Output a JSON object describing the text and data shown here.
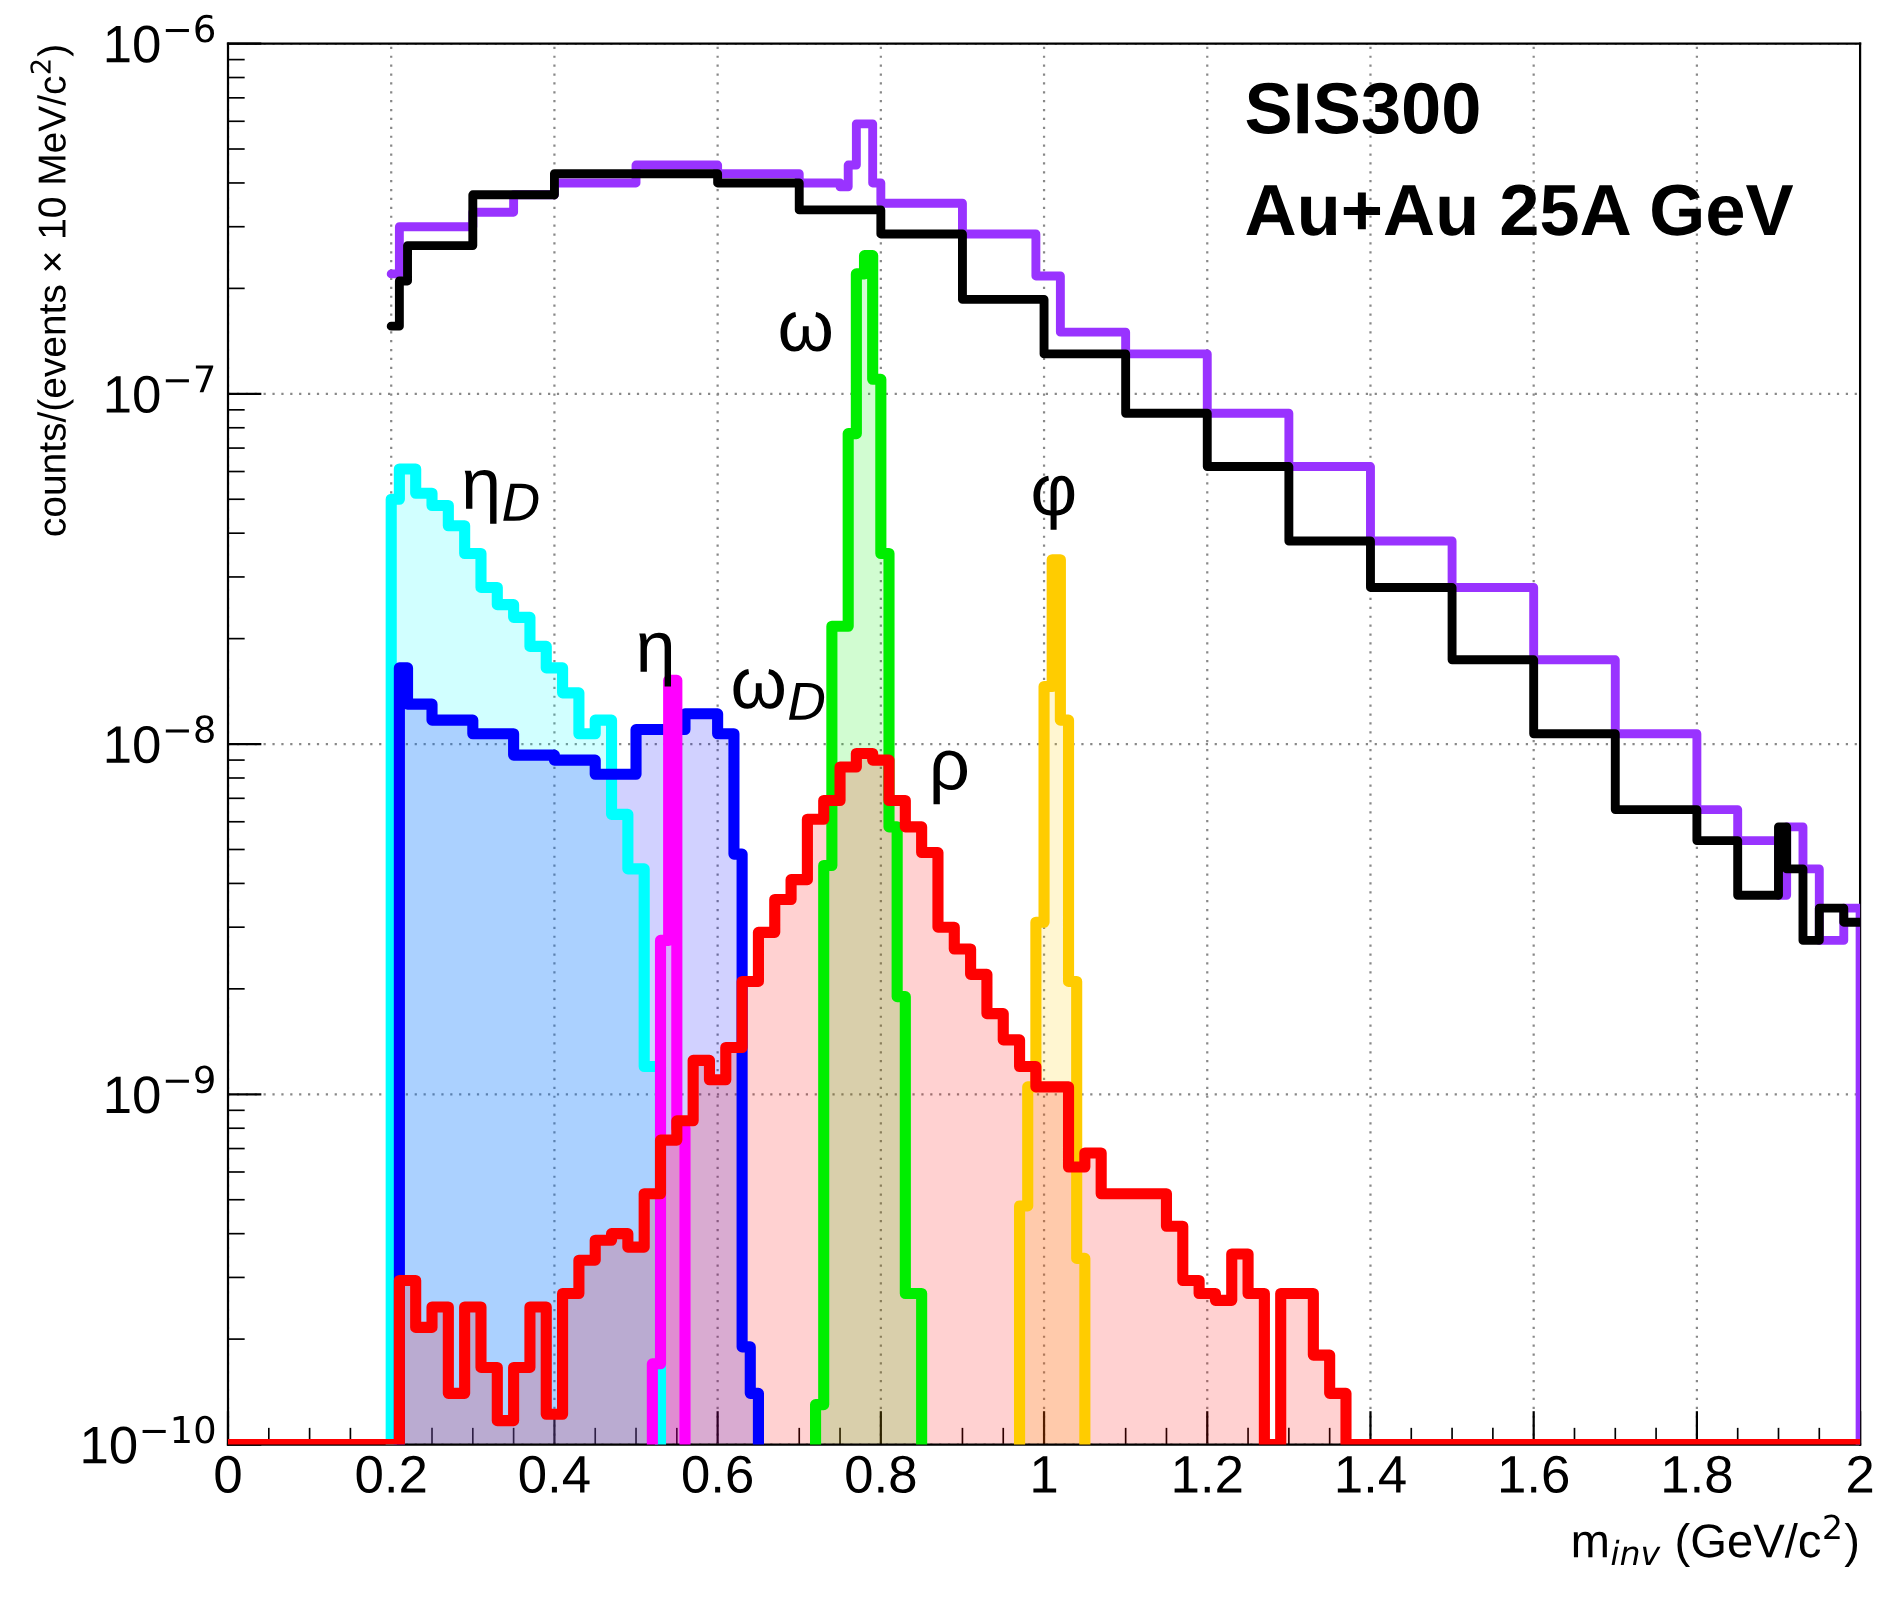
{
  "chart_data": {
    "type": "step",
    "xlabel": "m$_{inv}$ (GeV/c$^{2}$)",
    "ylabel": "counts/(events × 10 MeV/c$^{2}$)",
    "log": "y",
    "grid": true,
    "xlim": [
      0,
      2
    ],
    "xticks": [
      0,
      0.2,
      0.4,
      0.6,
      0.8,
      1,
      1.2,
      1.4,
      1.6,
      1.8,
      2
    ],
    "ylim": [
      1e-10,
      1e-06
    ],
    "yticks": [
      {
        "value": 1e-10,
        "label": "10$^{−10}$"
      },
      {
        "value": 1e-09,
        "label": "10$^{−9}$"
      },
      {
        "value": 1e-08,
        "label": "10$^{−8}$"
      },
      {
        "value": 1e-07,
        "label": "10$^{−7}$"
      },
      {
        "value": 1e-06,
        "label": "10$^{−6}$"
      }
    ],
    "annotations": [
      "SIS300",
      "Au+Au 25A GeV",
      "η$_{D}$",
      "ω",
      "η",
      "ω$_{D}$",
      "ρ",
      "φ"
    ],
    "series": [
      {
        "color": "#9933ff",
        "x": [
          0.2,
          0.21,
          0.3,
          0.35,
          0.4,
          0.5,
          0.6,
          0.7,
          0.75,
          0.76,
          0.77,
          0.79,
          0.8,
          0.9,
          0.99,
          1.02,
          1.1,
          1.2,
          1.3,
          1.4,
          1.5,
          1.6,
          1.7,
          1.8,
          1.85,
          1.9,
          1.91,
          1.93,
          1.95,
          1.98,
          2.0,
          2.0
        ],
        "values": [
          2.2e-07,
          3e-07,
          3.3e-07,
          3.7e-07,
          4e-07,
          4.5e-07,
          4.25e-07,
          4e-07,
          3.9e-07,
          4.5e-07,
          5.9e-07,
          4e-07,
          3.5e-07,
          2.86e-07,
          2.17e-07,
          1.5e-07,
          1.3e-07,
          8.8e-08,
          6.2e-08,
          3.8e-08,
          2.8e-08,
          1.74e-08,
          1.07e-08,
          6.5e-09,
          5.3e-09,
          3.7e-09,
          5.8e-09,
          4.4e-09,
          2.75e-09,
          3.4e-09,
          3.4e-09,
          1e-10
        ]
      },
      {
        "color": "#000000",
        "x": [
          0.2,
          0.21,
          0.22,
          0.3,
          0.4,
          0.5,
          0.6,
          0.7,
          0.8,
          0.9,
          1.0,
          1.1,
          1.2,
          1.3,
          1.4,
          1.5,
          1.6,
          1.7,
          1.8,
          1.85,
          1.9,
          1.91,
          1.93,
          1.95,
          1.98,
          2.0
        ],
        "values": [
          1.56e-07,
          2.1e-07,
          2.65e-07,
          3.7e-07,
          4.25e-07,
          4.25e-07,
          4e-07,
          3.35e-07,
          2.86e-07,
          1.86e-07,
          1.3e-07,
          8.8e-08,
          6.2e-08,
          3.8e-08,
          2.8e-08,
          1.74e-08,
          1.07e-08,
          6.5e-09,
          5.3e-09,
          3.7e-09,
          5.8e-09,
          4.4e-09,
          2.75e-09,
          3.4e-09,
          3.1e-09,
          3.1e-09
        ]
      },
      {
        "type": "area",
        "color": "#00ffff",
        "x": [
          0.2,
          0.21,
          0.23,
          0.25,
          0.27,
          0.29,
          0.31,
          0.33,
          0.35,
          0.37,
          0.39,
          0.41,
          0.43,
          0.45,
          0.47,
          0.49,
          0.51,
          0.53
        ],
        "values": [
          5e-08,
          6.1e-08,
          5.2e-08,
          4.8e-08,
          4.2e-08,
          3.5e-08,
          2.8e-08,
          2.5e-08,
          2.3e-08,
          1.9e-08,
          1.65e-08,
          1.4e-08,
          1.07e-08,
          1.17e-08,
          6.3e-09,
          4.4e-09,
          1.2e-09,
          1.2e-09
        ]
      },
      {
        "type": "area",
        "color": "#0000ff",
        "x": [
          0.21,
          0.22,
          0.25,
          0.3,
          0.35,
          0.4,
          0.45,
          0.5,
          0.53,
          0.56,
          0.6,
          0.62,
          0.63,
          0.64,
          0.65
        ],
        "values": [
          1.65e-08,
          1.3e-08,
          1.17e-08,
          1.07e-08,
          9.3e-09,
          9e-09,
          8.2e-09,
          1.1e-08,
          1.1e-08,
          1.22e-08,
          1.07e-08,
          4.85e-09,
          1.9e-10,
          1.4e-10,
          1.4e-10
        ]
      },
      {
        "type": "area",
        "color": "#ff00ff",
        "x": [
          0.52,
          0.53,
          0.54,
          0.55,
          0.56
        ],
        "values": [
          1.7e-10,
          2.75e-09,
          1.52e-08,
          8e-10,
          8e-10
        ]
      },
      {
        "type": "area",
        "color": "#00ee00",
        "x": [
          0.72,
          0.73,
          0.74,
          0.76,
          0.77,
          0.78,
          0.79,
          0.8,
          0.81,
          0.82,
          0.83,
          0.85
        ],
        "values": [
          1.3e-10,
          4.5e-09,
          2.17e-08,
          7.7e-08,
          2.2e-07,
          2.48e-07,
          1.1e-07,
          3.5e-08,
          5.8e-09,
          1.9e-09,
          2.7e-10,
          2.7e-10
        ]
      },
      {
        "type": "area",
        "color": "#ffcc00",
        "x": [
          0.97,
          0.98,
          0.99,
          1.0,
          1.01,
          1.02,
          1.03,
          1.04,
          1.05
        ],
        "values": [
          4.8e-10,
          1.05e-09,
          3.1e-09,
          1.46e-08,
          3.36e-08,
          1.17e-08,
          2.1e-09,
          3.4e-10,
          3.4e-10
        ]
      },
      {
        "type": "area",
        "color": "#ff0000",
        "x": [
          0,
          0.21,
          0.23,
          0.25,
          0.27,
          0.29,
          0.31,
          0.33,
          0.35,
          0.37,
          0.39,
          0.41,
          0.43,
          0.45,
          0.47,
          0.49,
          0.51,
          0.53,
          0.55,
          0.57,
          0.59,
          0.61,
          0.63,
          0.65,
          0.67,
          0.69,
          0.71,
          0.73,
          0.75,
          0.77,
          0.79,
          0.81,
          0.83,
          0.85,
          0.87,
          0.89,
          0.91,
          0.93,
          0.95,
          0.97,
          0.99,
          1.01,
          1.03,
          1.05,
          1.07,
          1.09,
          1.11,
          1.13,
          1.15,
          1.17,
          1.19,
          1.21,
          1.23,
          1.25,
          1.27,
          1.29,
          1.31,
          1.33,
          1.35,
          1.37,
          2.0
        ],
        "values": [
          1e-10,
          2.94e-10,
          2.16e-10,
          2.47e-10,
          1.4e-10,
          2.47e-10,
          1.66e-10,
          1.17e-10,
          1.66e-10,
          2.47e-10,
          1.22e-10,
          2.7e-10,
          3.36e-10,
          3.83e-10,
          4e-10,
          3.66e-10,
          5.2e-10,
          7.4e-10,
          8.4e-10,
          1.25e-09,
          1.1e-09,
          1.36e-09,
          2.1e-09,
          2.9e-09,
          3.6e-09,
          4.1e-09,
          6.1e-09,
          6.9e-09,
          8.6e-09,
          9.4e-09,
          9e-09,
          6.9e-09,
          5.8e-09,
          4.9e-09,
          3e-09,
          2.6e-09,
          2.2e-09,
          1.7e-09,
          1.43e-09,
          1.2e-09,
          1.05e-09,
          1.05e-09,
          6.2e-10,
          6.8e-10,
          5.2e-10,
          5.2e-10,
          5.2e-10,
          5.2e-10,
          4.2e-10,
          2.94e-10,
          2.7e-10,
          2.58e-10,
          3.5e-10,
          2.7e-10,
          1e-10,
          2.7e-10,
          2.7e-10,
          1.8e-10,
          1.4e-10,
          1e-10,
          1e-10
        ]
      }
    ]
  }
}
